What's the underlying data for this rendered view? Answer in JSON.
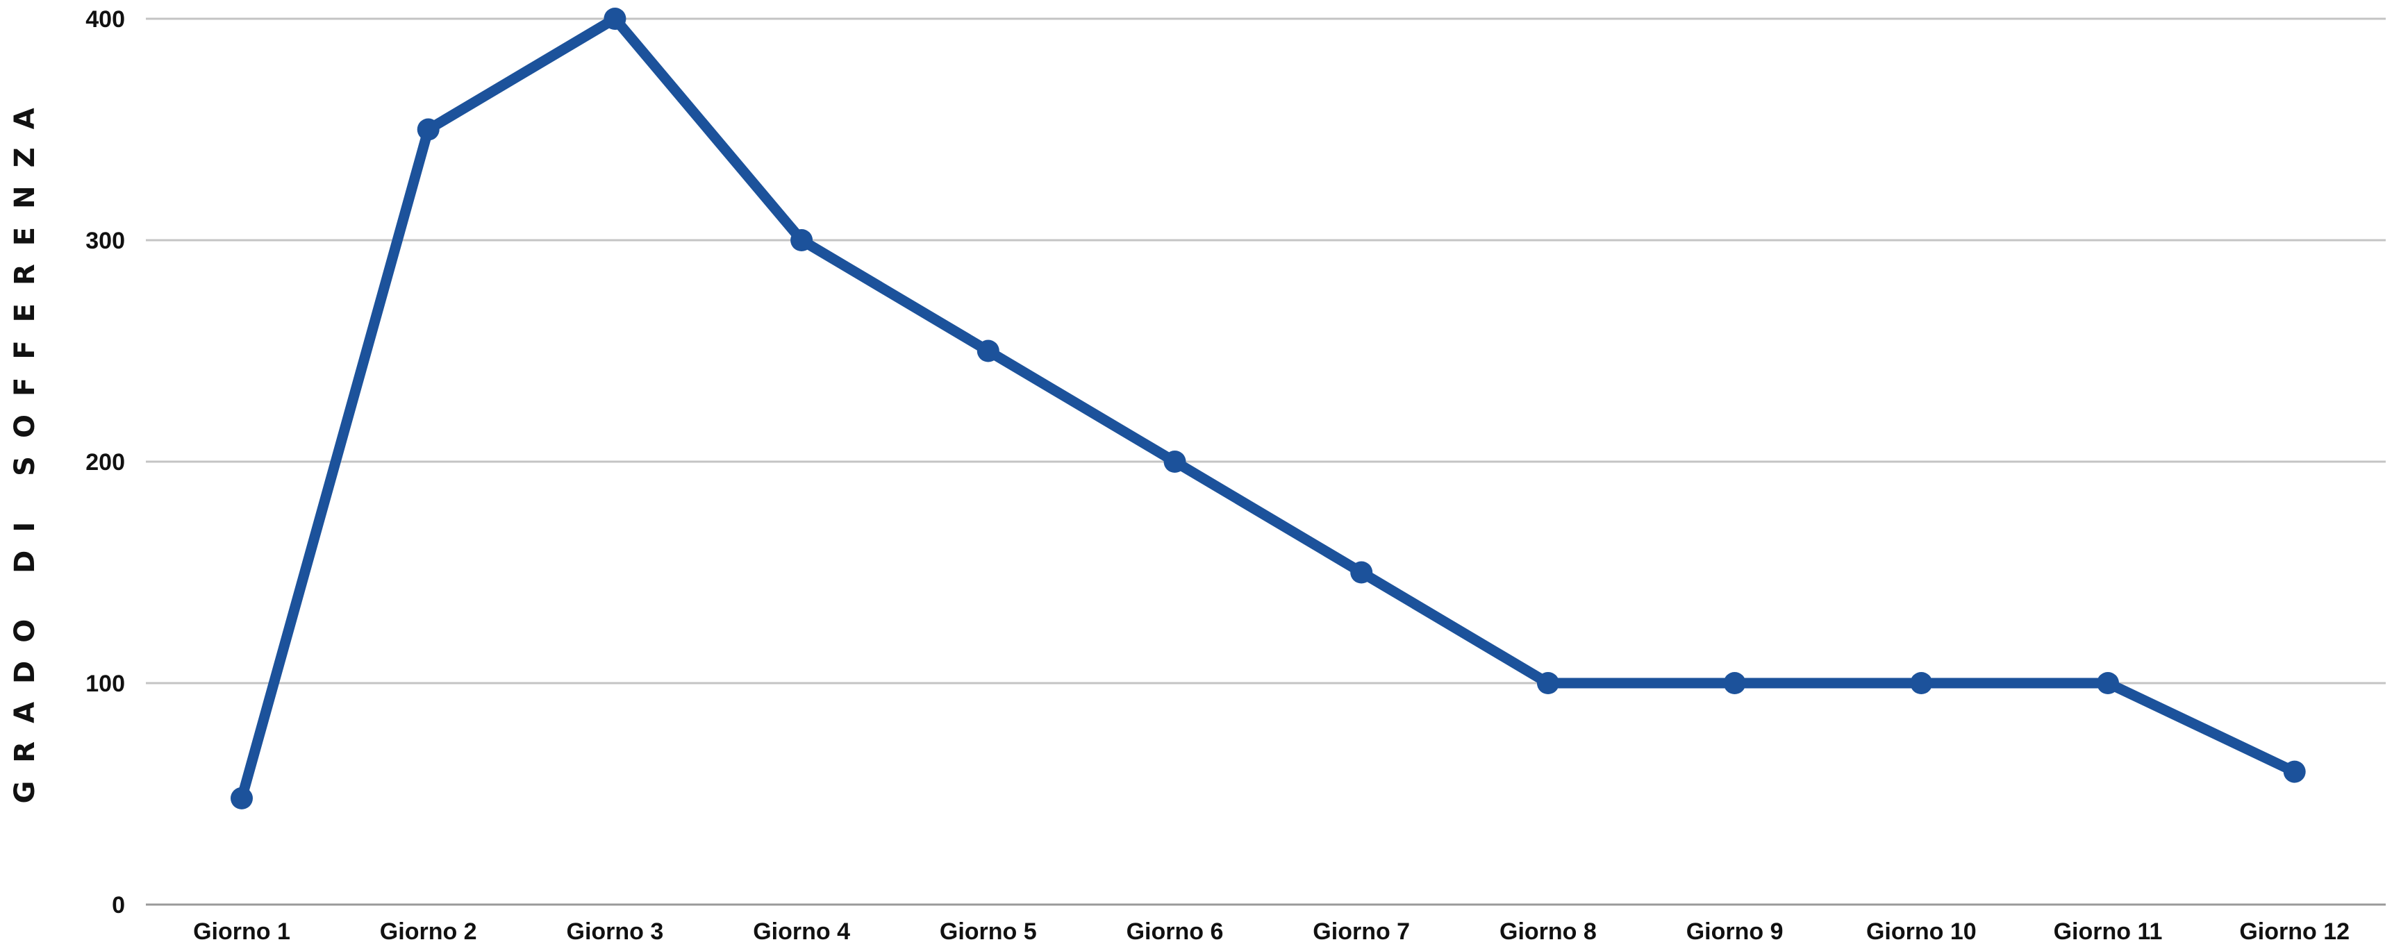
{
  "chart_data": {
    "type": "line",
    "title": "",
    "xlabel": "",
    "ylabel": "GRADO DI SOFFERENZA",
    "categories": [
      "Giorno 1",
      "Giorno 2",
      "Giorno 3",
      "Giorno 4",
      "Giorno 5",
      "Giorno 6",
      "Giorno 7",
      "Giorno 8",
      "Giorno 9",
      "Giorno 10",
      "Giorno 11",
      "Giorno 12"
    ],
    "series": [
      {
        "values": [
          48,
          350,
          400,
          300,
          250,
          200,
          150,
          100,
          100,
          100,
          100,
          60
        ],
        "color": "#1c529b"
      }
    ],
    "ylim": [
      0,
      400
    ],
    "yticks": [
      0,
      100,
      200,
      300,
      400
    ],
    "grid": true,
    "legend": "none"
  }
}
